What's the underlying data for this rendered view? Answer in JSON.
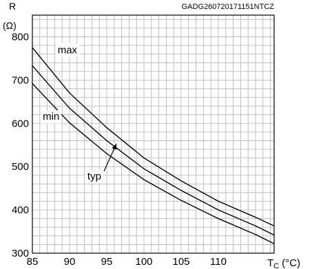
{
  "chart_data": {
    "type": "line",
    "code": "GADG260720171151NTCZ",
    "ylabel_top": "R",
    "ylabel_unit": "(Ω)",
    "xlabel_var": "T",
    "xlabel_sub": "C",
    "xlabel_unit": "(°C)",
    "xlim": [
      85,
      117.5
    ],
    "ylim": [
      300,
      850
    ],
    "x_ticks": [
      85,
      90,
      95,
      100,
      105,
      110
    ],
    "x_tick_labels": [
      "85",
      "90",
      "95",
      "100",
      "105",
      "110"
    ],
    "y_ticks": [
      300,
      400,
      500,
      600,
      700,
      800
    ],
    "y_tick_labels": [
      "300",
      "400",
      "500",
      "600",
      "700",
      "800"
    ],
    "grid": true,
    "series": [
      {
        "name": "max",
        "x": [
          85,
          90,
          95,
          100,
          105,
          110,
          115,
          117.5
        ],
        "y": [
          775,
          670,
          590,
          520,
          467,
          420,
          383,
          363
        ]
      },
      {
        "name": "typ",
        "x": [
          85,
          90,
          95,
          100,
          105,
          110,
          115,
          117.5
        ],
        "y": [
          733,
          635,
          560,
          495,
          445,
          400,
          363,
          342
        ]
      },
      {
        "name": "min",
        "x": [
          85,
          90,
          95,
          100,
          105,
          110,
          115,
          117.5
        ],
        "y": [
          692,
          601,
          530,
          470,
          422,
          380,
          343,
          322
        ]
      }
    ],
    "annotations": [
      {
        "text": "max",
        "x": 88.4,
        "y": 762
      },
      {
        "text": "min",
        "x": 86.4,
        "y": 608
      },
      {
        "text": "typ",
        "x": 92.4,
        "y": 470
      }
    ]
  }
}
